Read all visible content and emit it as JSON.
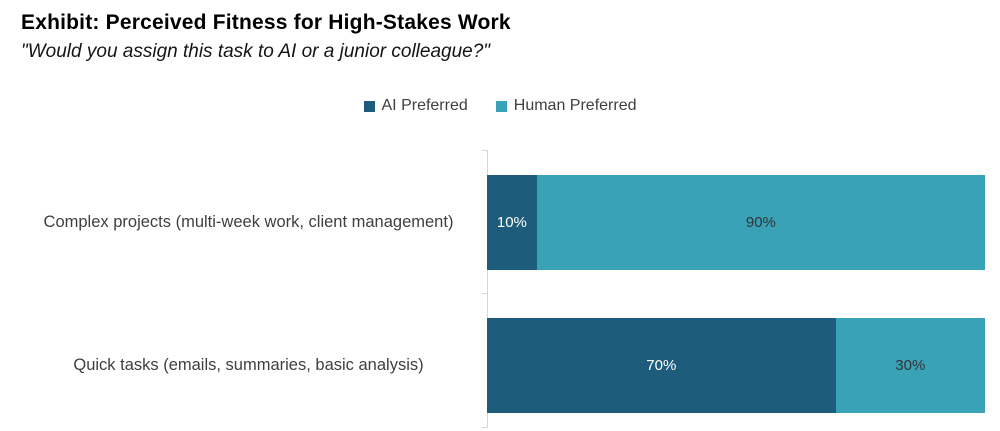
{
  "chart_data": {
    "type": "bar",
    "orientation": "horizontal",
    "stacked": true,
    "title": "Exhibit: Perceived Fitness for High-Stakes Work",
    "subtitle": "\"Would you assign this task to AI or a junior colleague?\"",
    "categories": [
      "Complex projects (multi-week work, client management)",
      "Quick tasks (emails, summaries, basic analysis)"
    ],
    "series": [
      {
        "name": "AI Preferred",
        "values": [
          10,
          70
        ],
        "color": "#1d5d7b",
        "label_color": "#ffffff"
      },
      {
        "name": "Human Preferred",
        "values": [
          90,
          30
        ],
        "color": "#3aa2b7",
        "label_color": "#333333"
      }
    ],
    "value_suffix": "%",
    "xlim": [
      0,
      100
    ],
    "legend_position": "top",
    "grid": false,
    "axis_line_color": "#d6d6d6"
  }
}
